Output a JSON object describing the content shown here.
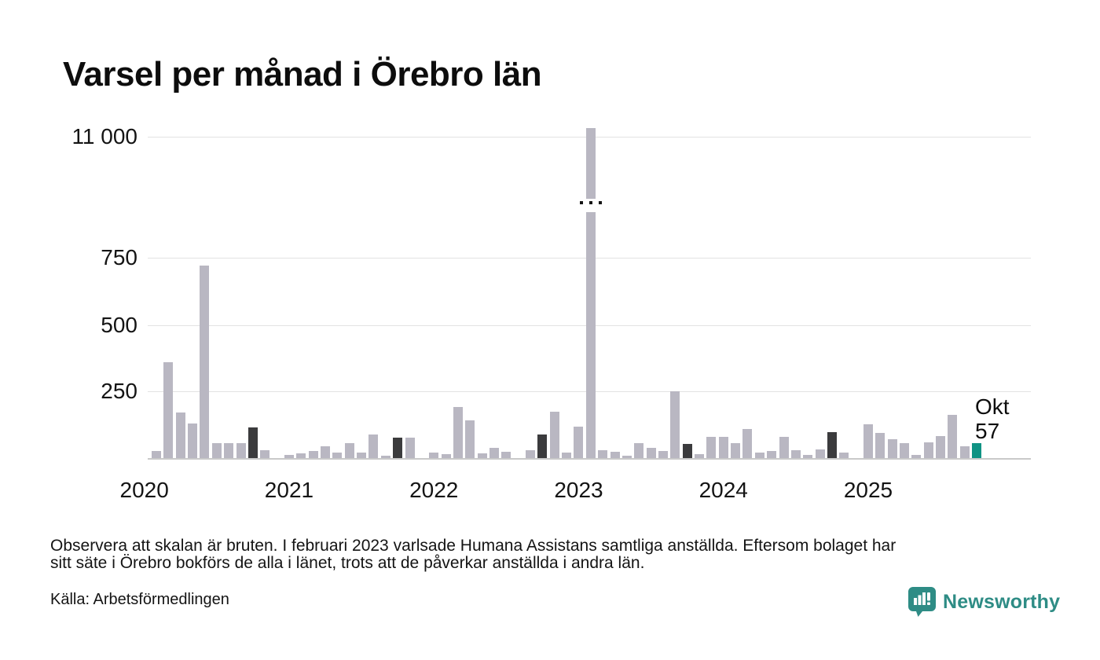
{
  "title": "Varsel per månad i Örebro län",
  "chart_data": {
    "type": "bar",
    "title": "Varsel per månad i Örebro län",
    "x_start": "2020-01",
    "x_end": "2025-10",
    "y_axis": {
      "tick_labels": [
        "250",
        "500",
        "750",
        "11 000"
      ],
      "broken_scale": true,
      "grid": true
    },
    "x_axis": {
      "year_labels": [
        "2020",
        "2021",
        "2022",
        "2023",
        "2024",
        "2025"
      ]
    },
    "values": [
      0,
      25,
      360,
      170,
      130,
      720,
      55,
      55,
      55,
      115,
      28,
      0,
      12,
      19,
      27,
      44,
      21,
      55,
      21,
      87,
      9,
      77,
      75,
      0,
      21,
      14,
      190,
      142,
      18,
      39,
      24,
      0,
      29,
      88,
      173,
      21,
      118,
      11300,
      29,
      24,
      8,
      56,
      38,
      26,
      250,
      54,
      15,
      78,
      78,
      55,
      110,
      21,
      26,
      80,
      29,
      12,
      32,
      98,
      21,
      0,
      127,
      95,
      70,
      55,
      12,
      60,
      82,
      162,
      45,
      57
    ],
    "highlight_indices": [
      9,
      21,
      33,
      45,
      57
    ],
    "current": {
      "index": 69,
      "month_label": "Okt",
      "value": 57
    },
    "broken_bar": {
      "index": 37,
      "month": "2023-02",
      "note": "exceeds broken scale, ~11 000+"
    },
    "colors": {
      "bar": "#b9b7c2",
      "highlight": "#3b3b3d",
      "current": "#109384",
      "gridline": "#e2e2e2"
    },
    "legend": null
  },
  "annotation": {
    "line1": "Okt",
    "line2": "57"
  },
  "footer": {
    "note_line1": "Observera att skalan är bruten. I februari 2023 varlsade Humana Assistans samtliga anställda. Eftersom bolaget har",
    "note_line2": "sitt säte i Örebro bokförs de alla i länet, trots att de påverkar anställda i andra län.",
    "source": "Källa: Arbetsförmedlingen",
    "brand": "Newsworthy"
  }
}
